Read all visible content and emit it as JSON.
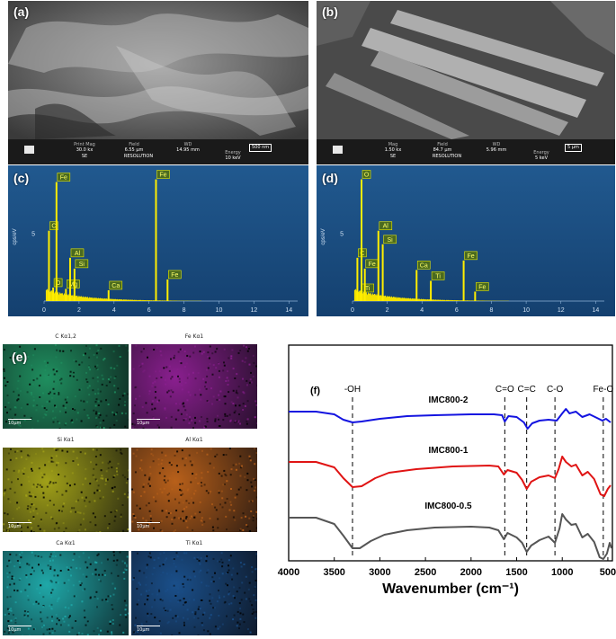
{
  "panel_a": {
    "label": "(a)",
    "info": {
      "c1": "Print Mag",
      "c1v": "30.0 kx",
      "c2": "Field",
      "c2v": "6.55 µm",
      "c3": "WD",
      "c3v": "14.95 mm",
      "scale": "500 nm",
      "d1": "SE",
      "d2": "RESOLUTION",
      "d3": "Energy",
      "d3v": "10 keV"
    }
  },
  "panel_b": {
    "label": "(b)",
    "info": {
      "c1": "Mag",
      "c1v": "1.50 kx",
      "c2": "Field",
      "c2v": "84.7 µm",
      "c3": "WD",
      "c3v": "5.96 mm",
      "scale": "5 µm",
      "d1": "SE",
      "d2": "RESOLUTION",
      "d3": "Energy",
      "d3v": "5 keV"
    }
  },
  "panel_c": {
    "label": "(c)",
    "ylabel": "cps/eV",
    "ytick": "5"
  },
  "panel_d": {
    "label": "(d)",
    "ylabel": "cps/eV",
    "ytick": "5"
  },
  "panel_e": {
    "label": "(e)",
    "maps": [
      {
        "title": "C Kα1,2",
        "scale": "10µm",
        "color": "#1f8f5f"
      },
      {
        "title": "Fe Kα1",
        "scale": "10µm",
        "color": "#8a1f8f"
      },
      {
        "title": "Si Kα1",
        "scale": "10µm",
        "color": "#a0a018"
      },
      {
        "title": "Al Kα1",
        "scale": "10µm",
        "color": "#b8601a"
      },
      {
        "title": "Ca Kα1",
        "scale": "10µm",
        "color": "#1fa8a8"
      },
      {
        "title": "Ti Kα1",
        "scale": "10µm",
        "color": "#1a4f8a"
      }
    ]
  },
  "chart_data": [
    {
      "type": "bar",
      "panel": "(c)",
      "ylabel": "cps/eV",
      "xlim": [
        0,
        14.5
      ],
      "ylim": [
        0,
        9.5
      ],
      "xticks": [
        0,
        2,
        4,
        6,
        8,
        10,
        12,
        14
      ],
      "yticks": [
        5
      ],
      "peaks": [
        {
          "x": 0.28,
          "y": 5.2,
          "label": "C"
        },
        {
          "x": 0.52,
          "y": 1.0,
          "label": "O"
        },
        {
          "x": 0.71,
          "y": 8.8,
          "label": "Fe"
        },
        {
          "x": 1.25,
          "y": 0.9,
          "label": "Mg"
        },
        {
          "x": 1.49,
          "y": 3.2,
          "label": "Al"
        },
        {
          "x": 1.74,
          "y": 2.4,
          "label": "Si"
        },
        {
          "x": 3.69,
          "y": 0.8,
          "label": "Ca"
        },
        {
          "x": 6.4,
          "y": 9.0,
          "label": "Fe"
        },
        {
          "x": 7.06,
          "y": 1.6,
          "label": "Fe"
        }
      ]
    },
    {
      "type": "bar",
      "panel": "(d)",
      "ylabel": "cps/eV",
      "xlim": [
        0,
        14.5
      ],
      "ylim": [
        0,
        9.5
      ],
      "xticks": [
        0,
        2,
        4,
        6,
        8,
        10,
        12,
        14
      ],
      "yticks": [
        5
      ],
      "peaks": [
        {
          "x": 0.28,
          "y": 3.2,
          "label": "C"
        },
        {
          "x": 0.45,
          "y": 0.6,
          "label": "Ti"
        },
        {
          "x": 0.52,
          "y": 9.0,
          "label": "O"
        },
        {
          "x": 0.71,
          "y": 2.4,
          "label": "Fe"
        },
        {
          "x": 1.49,
          "y": 5.2,
          "label": "Al"
        },
        {
          "x": 1.74,
          "y": 4.2,
          "label": "Si"
        },
        {
          "x": 3.69,
          "y": 2.3,
          "label": "Ca"
        },
        {
          "x": 4.51,
          "y": 1.5,
          "label": "Ti"
        },
        {
          "x": 6.4,
          "y": 3.0,
          "label": "Fe"
        },
        {
          "x": 7.06,
          "y": 0.7,
          "label": "Fe"
        }
      ]
    },
    {
      "type": "line",
      "panel": "(f)",
      "xlabel": "Wavenumber (cm⁻¹)",
      "xlim": [
        4000,
        450
      ],
      "xticks": [
        4000,
        3500,
        3000,
        2500,
        2000,
        1500,
        1000,
        500
      ],
      "annotations": [
        {
          "label": "-OH",
          "x": 3300
        },
        {
          "label": "C=O",
          "x": 1630
        },
        {
          "label": "C=C",
          "x": 1390
        },
        {
          "label": "C-O",
          "x": 1080
        },
        {
          "label": "Fe-O",
          "x": 550
        }
      ],
      "series": [
        {
          "name": "IMC800-2",
          "color": "#1414e0",
          "baseline": 82,
          "points": [
            [
              4000,
              0
            ],
            [
              3700,
              0
            ],
            [
              3500,
              -3
            ],
            [
              3400,
              -9
            ],
            [
              3300,
              -12
            ],
            [
              3200,
              -11
            ],
            [
              3000,
              -8
            ],
            [
              2700,
              -5
            ],
            [
              2400,
              -4
            ],
            [
              2000,
              -3
            ],
            [
              1750,
              -3
            ],
            [
              1660,
              -4
            ],
            [
              1630,
              -11
            ],
            [
              1590,
              -5
            ],
            [
              1500,
              -6
            ],
            [
              1420,
              -12
            ],
            [
              1380,
              -19
            ],
            [
              1330,
              -13
            ],
            [
              1250,
              -10
            ],
            [
              1150,
              -9
            ],
            [
              1060,
              -10
            ],
            [
              1000,
              -2
            ],
            [
              960,
              3
            ],
            [
              920,
              -2
            ],
            [
              850,
              0
            ],
            [
              780,
              -6
            ],
            [
              700,
              -3
            ],
            [
              620,
              -7
            ],
            [
              560,
              -10
            ],
            [
              520,
              -8
            ],
            [
              470,
              -12
            ]
          ]
        },
        {
          "name": "IMC800-1",
          "color": "#e01414",
          "baseline": 138,
          "points": [
            [
              4000,
              0
            ],
            [
              3700,
              0
            ],
            [
              3500,
              -6
            ],
            [
              3400,
              -18
            ],
            [
              3300,
              -28
            ],
            [
              3200,
              -27
            ],
            [
              3050,
              -18
            ],
            [
              2900,
              -12
            ],
            [
              2600,
              -8
            ],
            [
              2200,
              -5
            ],
            [
              1800,
              -4
            ],
            [
              1700,
              -5
            ],
            [
              1640,
              -14
            ],
            [
              1600,
              -9
            ],
            [
              1500,
              -12
            ],
            [
              1440,
              -20
            ],
            [
              1390,
              -30
            ],
            [
              1340,
              -22
            ],
            [
              1250,
              -17
            ],
            [
              1150,
              -15
            ],
            [
              1080,
              -18
            ],
            [
              1040,
              -8
            ],
            [
              1000,
              6
            ],
            [
              960,
              0
            ],
            [
              900,
              -5
            ],
            [
              850,
              -3
            ],
            [
              780,
              -15
            ],
            [
              720,
              -11
            ],
            [
              650,
              -19
            ],
            [
              580,
              -36
            ],
            [
              540,
              -38
            ],
            [
              500,
              -30
            ],
            [
              470,
              -26
            ]
          ]
        },
        {
          "name": "IMC800-0.5",
          "color": "#555555",
          "baseline": 200,
          "points": [
            [
              4000,
              0
            ],
            [
              3700,
              0
            ],
            [
              3500,
              -7
            ],
            [
              3400,
              -20
            ],
            [
              3300,
              -34
            ],
            [
              3220,
              -34
            ],
            [
              3100,
              -26
            ],
            [
              2950,
              -19
            ],
            [
              2700,
              -14
            ],
            [
              2400,
              -11
            ],
            [
              2000,
              -10
            ],
            [
              1800,
              -11
            ],
            [
              1700,
              -14
            ],
            [
              1640,
              -24
            ],
            [
              1600,
              -17
            ],
            [
              1500,
              -22
            ],
            [
              1440,
              -28
            ],
            [
              1390,
              -38
            ],
            [
              1340,
              -31
            ],
            [
              1250,
              -25
            ],
            [
              1150,
              -21
            ],
            [
              1080,
              -28
            ],
            [
              1030,
              -12
            ],
            [
              1000,
              4
            ],
            [
              960,
              -2
            ],
            [
              900,
              -8
            ],
            [
              850,
              -7
            ],
            [
              780,
              -22
            ],
            [
              720,
              -18
            ],
            [
              650,
              -27
            ],
            [
              590,
              -44
            ],
            [
              550,
              -46
            ],
            [
              510,
              -40
            ],
            [
              480,
              -28
            ],
            [
              460,
              -34
            ]
          ]
        }
      ]
    }
  ]
}
